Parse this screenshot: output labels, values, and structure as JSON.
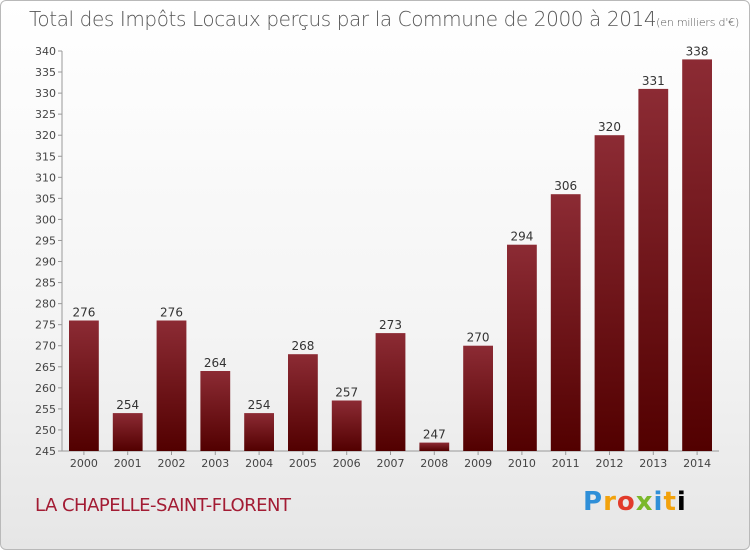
{
  "chart_data": {
    "type": "bar",
    "title": "Total des Impôts Locaux perçus par la Commune de 2000 à 2014",
    "subtitle": "(en milliers d'€)",
    "xlabel": "",
    "ylabel": "",
    "categories": [
      "2000",
      "2001",
      "2002",
      "2003",
      "2004",
      "2005",
      "2006",
      "2007",
      "2008",
      "2009",
      "2010",
      "2011",
      "2012",
      "2013",
      "2014"
    ],
    "values": [
      276,
      254,
      276,
      264,
      254,
      268,
      257,
      273,
      247,
      270,
      294,
      306,
      320,
      331,
      338
    ],
    "ylim": [
      245,
      340
    ],
    "ytick_step": 5,
    "grid": false,
    "bar_color_top": "#8c2b34",
    "bar_color_bottom": "#520000"
  },
  "footer": {
    "commune": "LA CHAPELLE-SAINT-FLORENT",
    "logo_letters": [
      "P",
      "r",
      "o",
      "x",
      "i",
      "t",
      "i"
    ]
  }
}
